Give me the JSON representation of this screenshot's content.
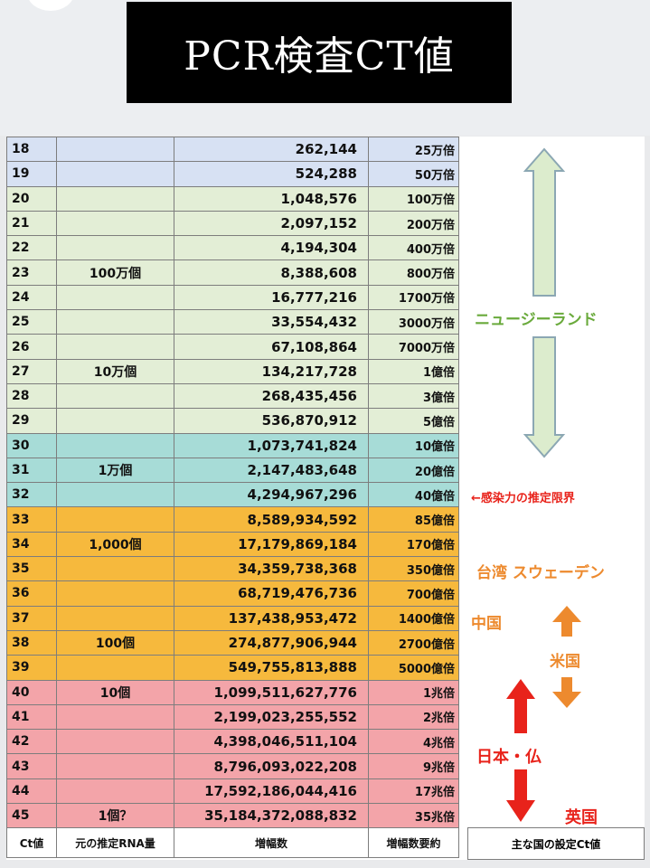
{
  "title": "PCR検査CT値",
  "colors": {
    "blue": "#d7e1f3",
    "green": "#e3eed6",
    "teal": "#a7dcd7",
    "orange": "#f6b93d",
    "pink": "#f3a4a9",
    "nz": "#6aaa3c",
    "red_label": "#e8231b",
    "orange_label": "#ed8a2e",
    "arrow_outline": "#8ba7b3",
    "arrow_green": "#dceccd"
  },
  "rows": [
    {
      "ct": "18",
      "rna": "",
      "amp": "262,144",
      "summary": "25万倍",
      "band": "blue"
    },
    {
      "ct": "19",
      "rna": "",
      "amp": "524,288",
      "summary": "50万倍",
      "band": "blue"
    },
    {
      "ct": "20",
      "rna": "",
      "amp": "1,048,576",
      "summary": "100万倍",
      "band": "green"
    },
    {
      "ct": "21",
      "rna": "",
      "amp": "2,097,152",
      "summary": "200万倍",
      "band": "green"
    },
    {
      "ct": "22",
      "rna": "",
      "amp": "4,194,304",
      "summary": "400万倍",
      "band": "green"
    },
    {
      "ct": "23",
      "rna": "100万個",
      "amp": "8,388,608",
      "summary": "800万倍",
      "band": "green"
    },
    {
      "ct": "24",
      "rna": "",
      "amp": "16,777,216",
      "summary": "1700万倍",
      "band": "green"
    },
    {
      "ct": "25",
      "rna": "",
      "amp": "33,554,432",
      "summary": "3000万倍",
      "band": "green"
    },
    {
      "ct": "26",
      "rna": "",
      "amp": "67,108,864",
      "summary": "7000万倍",
      "band": "green"
    },
    {
      "ct": "27",
      "rna": "10万個",
      "amp": "134,217,728",
      "summary": "1億倍",
      "band": "green"
    },
    {
      "ct": "28",
      "rna": "",
      "amp": "268,435,456",
      "summary": "3億倍",
      "band": "green"
    },
    {
      "ct": "29",
      "rna": "",
      "amp": "536,870,912",
      "summary": "5億倍",
      "band": "green"
    },
    {
      "ct": "30",
      "rna": "",
      "amp": "1,073,741,824",
      "summary": "10億倍",
      "band": "teal"
    },
    {
      "ct": "31",
      "rna": "1万個",
      "amp": "2,147,483,648",
      "summary": "20億倍",
      "band": "teal"
    },
    {
      "ct": "32",
      "rna": "",
      "amp": "4,294,967,296",
      "summary": "40億倍",
      "band": "teal"
    },
    {
      "ct": "33",
      "rna": "",
      "amp": "8,589,934,592",
      "summary": "85億倍",
      "band": "orange"
    },
    {
      "ct": "34",
      "rna": "1,000個",
      "amp": "17,179,869,184",
      "summary": "170億倍",
      "band": "orange"
    },
    {
      "ct": "35",
      "rna": "",
      "amp": "34,359,738,368",
      "summary": "350億倍",
      "band": "orange"
    },
    {
      "ct": "36",
      "rna": "",
      "amp": "68,719,476,736",
      "summary": "700億倍",
      "band": "orange"
    },
    {
      "ct": "37",
      "rna": "",
      "amp": "137,438,953,472",
      "summary": "1400億倍",
      "band": "orange"
    },
    {
      "ct": "38",
      "rna": "100個",
      "amp": "274,877,906,944",
      "summary": "2700億倍",
      "band": "orange"
    },
    {
      "ct": "39",
      "rna": "",
      "amp": "549,755,813,888",
      "summary": "5000億倍",
      "band": "orange"
    },
    {
      "ct": "40",
      "rna": "10個",
      "amp": "1,099,511,627,776",
      "summary": "1兆倍",
      "band": "pink"
    },
    {
      "ct": "41",
      "rna": "",
      "amp": "2,199,023,255,552",
      "summary": "2兆倍",
      "band": "pink"
    },
    {
      "ct": "42",
      "rna": "",
      "amp": "4,398,046,511,104",
      "summary": "4兆倍",
      "band": "pink"
    },
    {
      "ct": "43",
      "rna": "",
      "amp": "8,796,093,022,208",
      "summary": "9兆倍",
      "band": "pink"
    },
    {
      "ct": "44",
      "rna": "",
      "amp": "17,592,186,044,416",
      "summary": "17兆倍",
      "band": "pink"
    },
    {
      "ct": "45",
      "rna": "1個？",
      "amp": "35,184,372,088,832",
      "summary": "35兆倍",
      "band": "pink"
    }
  ],
  "headers": {
    "ct": "Ct値",
    "rna": "元の推定RNA量",
    "amp": "増幅数",
    "summary": "増幅数要約",
    "countries": "主な国の設定Ct値"
  },
  "labels": {
    "new_zealand": "ニュージーランド",
    "infectivity_limit": "←感染力の推定限界",
    "taiwan_sweden": "台湾 スウェーデン",
    "china": "中国",
    "usa": "米国",
    "japan_france": "日本・仏",
    "uk": "英国"
  }
}
